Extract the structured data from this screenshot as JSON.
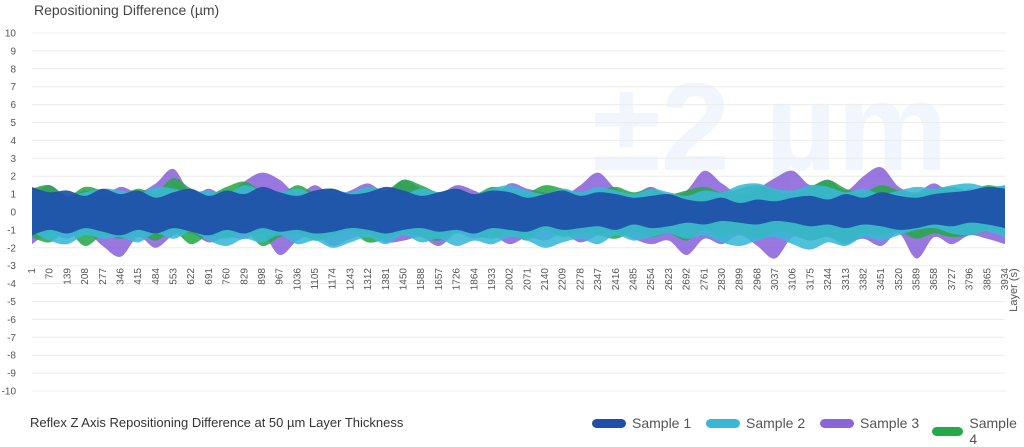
{
  "chart_data": {
    "type": "area",
    "title": "Reflex Z Axis Repositioning Difference at 50 µm Layer Thickness",
    "ylabel": "Repositioning Difference (µm)",
    "xlabel": "Layer (s)",
    "watermark": "±2 µm",
    "ylim": [
      -10,
      10
    ],
    "yticks": [
      10,
      9,
      8,
      7,
      6,
      5,
      4,
      3,
      2,
      1,
      0,
      -1,
      -2,
      -3,
      -4,
      -5,
      -6,
      -7,
      -8,
      -9,
      -10
    ],
    "xticks": [
      "1",
      "70",
      "139",
      "208",
      "277",
      "346",
      "415",
      "484",
      "553",
      "622",
      "691",
      "760",
      "829",
      "898",
      "967",
      "1036",
      "1105",
      "1174",
      "1243",
      "1312",
      "1381",
      "1450",
      "1588",
      "1657",
      "1726",
      "1864",
      "1933",
      "2002",
      "2071",
      "2140",
      "2209",
      "2278",
      "2347",
      "2416",
      "2485",
      "2554",
      "2623",
      "2692",
      "2761",
      "2830",
      "2899",
      "2968",
      "3037",
      "3106",
      "3175",
      "3244",
      "3313",
      "3382",
      "3451",
      "3520",
      "3589",
      "3658",
      "3727",
      "3796",
      "3865",
      "3934"
    ],
    "xrange": [
      1,
      4000
    ],
    "grid": true,
    "legend_position": "bottom-right",
    "series": [
      {
        "name": "Sample 1",
        "color": "#1f4fa8",
        "upper": [
          1.4,
          1.1,
          1.2,
          0.9,
          1.3,
          1.0,
          1.2,
          0.8,
          1.1,
          1.3,
          0.9,
          1.2,
          1.0,
          1.4,
          1.1,
          0.9,
          1.2,
          1.3,
          1.0,
          1.1,
          1.4,
          1.2,
          0.9,
          1.1,
          1.3,
          1.0,
          1.2,
          1.1,
          0.8,
          1.0,
          1.2,
          0.9,
          1.1,
          1.0,
          0.8,
          0.9,
          1.0,
          0.7,
          0.6,
          0.8,
          0.5,
          0.7,
          0.6,
          0.8,
          0.9,
          0.7,
          1.0,
          0.8,
          1.1,
          0.9,
          0.8,
          1.0,
          1.1,
          1.2,
          1.4,
          1.3
        ],
        "lower": [
          -1.3,
          -1.0,
          -1.2,
          -0.9,
          -1.1,
          -1.3,
          -1.0,
          -1.2,
          -0.9,
          -1.1,
          -1.3,
          -1.0,
          -1.2,
          -0.9,
          -1.1,
          -1.0,
          -1.2,
          -1.1,
          -0.9,
          -1.0,
          -1.2,
          -1.0,
          -0.9,
          -1.1,
          -1.0,
          -1.2,
          -0.9,
          -1.0,
          -1.1,
          -0.8,
          -1.0,
          -0.9,
          -0.8,
          -1.0,
          -0.7,
          -0.9,
          -0.8,
          -0.6,
          -0.7,
          -0.5,
          -0.6,
          -0.7,
          -0.5,
          -0.6,
          -0.8,
          -0.7,
          -0.9,
          -0.7,
          -0.8,
          -1.0,
          -0.9,
          -0.7,
          -0.8,
          -0.6,
          -0.7,
          -0.9
        ]
      },
      {
        "name": "Sample 2",
        "color": "#39b8d6",
        "upper": [
          1.2,
          1.0,
          0.9,
          1.1,
          1.3,
          1.2,
          1.0,
          1.4,
          1.3,
          1.1,
          1.2,
          1.0,
          1.5,
          1.2,
          1.1,
          1.3,
          1.0,
          1.2,
          1.1,
          1.4,
          1.2,
          1.0,
          1.3,
          1.1,
          1.2,
          1.0,
          1.3,
          1.5,
          1.2,
          1.0,
          1.3,
          1.1,
          1.4,
          1.2,
          1.0,
          1.3,
          1.1,
          0.9,
          1.2,
          1.1,
          1.5,
          1.6,
          1.3,
          1.2,
          1.5,
          1.4,
          1.1,
          1.3,
          1.0,
          1.2,
          1.4,
          1.3,
          1.5,
          1.6,
          1.4,
          1.5
        ],
        "lower": [
          -1.1,
          -1.6,
          -1.8,
          -1.3,
          -1.5,
          -1.4,
          -1.7,
          -1.2,
          -1.5,
          -1.1,
          -1.6,
          -1.9,
          -1.5,
          -1.7,
          -1.3,
          -1.8,
          -1.6,
          -2.0,
          -1.7,
          -1.4,
          -1.8,
          -1.3,
          -1.7,
          -1.5,
          -1.9,
          -1.6,
          -1.8,
          -1.4,
          -1.6,
          -2.0,
          -1.7,
          -1.5,
          -1.8,
          -1.3,
          -1.6,
          -1.4,
          -1.2,
          -1.5,
          -1.3,
          -1.7,
          -1.9,
          -1.6,
          -1.4,
          -1.8,
          -2.1,
          -1.7,
          -1.9,
          -1.4,
          -1.6,
          -1.3,
          -1.0,
          -0.9,
          -1.2,
          -1.3,
          -1.1,
          -1.4
        ]
      },
      {
        "name": "Sample 3",
        "color": "#8a64d9",
        "upper": [
          1.0,
          1.5,
          0.8,
          1.2,
          0.9,
          1.4,
          1.1,
          1.6,
          2.4,
          1.0,
          1.3,
          0.9,
          1.7,
          2.2,
          1.8,
          1.0,
          1.5,
          0.9,
          1.2,
          1.6,
          1.1,
          1.8,
          1.3,
          1.0,
          1.5,
          1.2,
          0.8,
          1.6,
          1.3,
          1.1,
          0.9,
          1.5,
          2.2,
          1.3,
          1.0,
          1.4,
          0.9,
          1.2,
          2.3,
          1.6,
          1.0,
          1.3,
          1.9,
          2.3,
          1.5,
          1.8,
          1.2,
          2.0,
          2.5,
          1.4,
          1.1,
          1.6,
          1.0,
          1.3,
          1.2,
          1.5
        ],
        "lower": [
          -1.8,
          -1.2,
          -1.5,
          -1.1,
          -1.9,
          -2.5,
          -1.4,
          -2.0,
          -1.3,
          -1.2,
          -1.7,
          -1.4,
          -1.5,
          -1.2,
          -2.4,
          -1.6,
          -1.3,
          -1.9,
          -1.5,
          -1.2,
          -1.7,
          -1.6,
          -1.4,
          -1.9,
          -1.2,
          -1.5,
          -1.3,
          -1.8,
          -1.4,
          -1.6,
          -1.2,
          -1.7,
          -1.3,
          -1.1,
          -1.5,
          -1.8,
          -1.6,
          -2.4,
          -1.5,
          -1.8,
          -1.3,
          -1.9,
          -2.6,
          -1.4,
          -1.6,
          -1.3,
          -1.7,
          -1.5,
          -1.9,
          -1.2,
          -2.6,
          -1.4,
          -1.8,
          -1.3,
          -1.5,
          -1.8
        ]
      },
      {
        "name": "Sample 4",
        "color": "#27a84a",
        "upper": [
          1.3,
          1.5,
          0.9,
          1.4,
          1.2,
          1.0,
          1.3,
          1.1,
          1.9,
          1.3,
          1.0,
          1.4,
          1.7,
          1.2,
          1.0,
          1.5,
          1.1,
          1.3,
          1.0,
          1.4,
          1.2,
          1.8,
          1.5,
          1.1,
          1.3,
          1.0,
          1.4,
          1.2,
          1.1,
          1.5,
          1.3,
          1.0,
          1.2,
          1.4,
          1.1,
          1.3,
          1.0,
          1.2,
          1.4,
          1.1,
          1.3,
          1.5,
          1.2,
          1.0,
          1.4,
          1.8,
          1.3,
          1.1,
          1.5,
          1.2,
          1.0,
          1.3,
          1.4,
          1.2,
          1.5,
          1.3
        ],
        "lower": [
          -1.4,
          -1.7,
          -1.1,
          -1.9,
          -1.3,
          -1.5,
          -1.2,
          -1.6,
          -1.1,
          -1.8,
          -1.3,
          -1.5,
          -1.0,
          -1.9,
          -1.4,
          -1.2,
          -1.6,
          -1.3,
          -1.1,
          -1.7,
          -1.5,
          -1.2,
          -1.4,
          -1.6,
          -1.1,
          -1.3,
          -1.5,
          -1.2,
          -1.6,
          -1.0,
          -1.4,
          -1.2,
          -1.3,
          -1.5,
          -1.1,
          -1.4,
          -1.2,
          -1.6,
          -1.0,
          -1.4,
          -1.2,
          -1.5,
          -1.1,
          -1.3,
          -1.6,
          -1.4,
          -1.8,
          -1.2,
          -1.3,
          -1.1,
          -1.5,
          -1.2,
          -1.4,
          -1.3,
          -1.1,
          -1.2
        ]
      }
    ]
  }
}
